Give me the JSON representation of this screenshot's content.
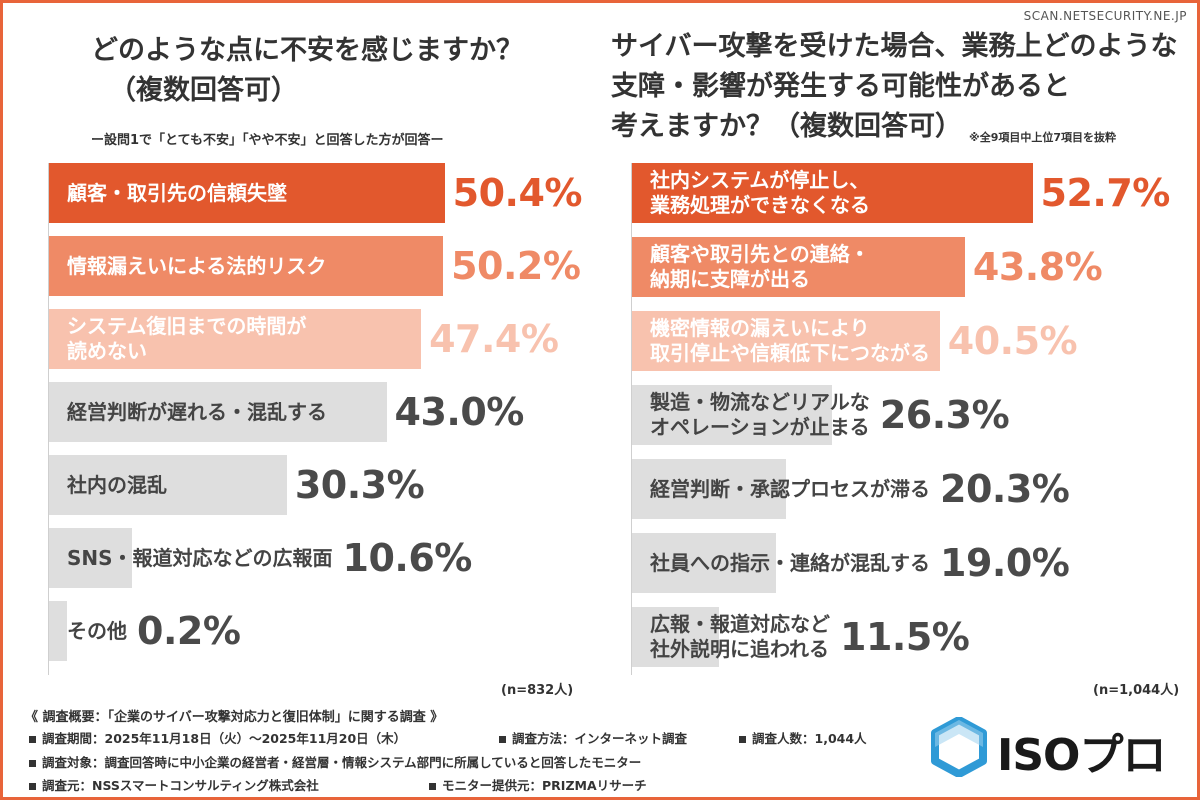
{
  "watermark": "SCAN.NETSECURITY.NE.JP",
  "left_chart": {
    "title_lines": [
      "どのような点に不安を感じますか？",
      "（複数回答可）"
    ],
    "subnote": "ー設問1で「とても不安」「やや不安」と回答した方が回答ー",
    "n_label": "(n=832人)"
  },
  "right_chart": {
    "title_lines": [
      "サイバー攻撃を受けた場合、業務上どのような",
      "支障・影響が発生する可能性があると",
      "考えますか？（複数回答可）"
    ],
    "subnote": "※全9項目中上位7項目を抜粋",
    "n_label": "(n=1,044人)"
  },
  "chart_data": [
    {
      "type": "bar",
      "orientation": "horizontal",
      "title": "どのような点に不安を感じますか？（複数回答可）",
      "unit": "%",
      "xlim": [
        0,
        100
      ],
      "categories": [
        "顧客・取引先の信頼失墜",
        "情報漏えいによる法的リスク",
        "システム復旧までの時間が\n読めない",
        "経営判断が遅れる・混乱する",
        "社内の混乱",
        "SNS・報道対応などの広報面",
        "その他"
      ],
      "values": [
        50.4,
        50.2,
        47.4,
        43.0,
        30.3,
        10.6,
        0.2
      ],
      "value_labels": [
        "50.4%",
        "50.2%",
        "47.4%",
        "43.0%",
        "30.3%",
        "10.6%",
        "0.2%"
      ],
      "bar_colors": [
        "#e2582d",
        "#ef8a66",
        "#f8c2ae",
        "#dedede",
        "#dedede",
        "#dedede",
        "#dedede"
      ],
      "label_colors": [
        "#ffffff",
        "#ffffff",
        "#ffffff",
        "#444444",
        "#444444",
        "#444444",
        "#444444"
      ],
      "value_colors": [
        "#e2582d",
        "#ef8a66",
        "#f8c2ae",
        "#4a4a4a",
        "#4a4a4a",
        "#4a4a4a",
        "#4a4a4a"
      ]
    },
    {
      "type": "bar",
      "orientation": "horizontal",
      "title": "サイバー攻撃を受けた場合、業務上どのような支障・影響が発生する可能性があると考えますか？（複数回答可）",
      "unit": "%",
      "xlim": [
        0,
        100
      ],
      "categories": [
        "社内システムが停止し、\n業務処理ができなくなる",
        "顧客や取引先との連絡・\n納期に支障が出る",
        "機密情報の漏えいにより\n取引停止や信頼低下につながる",
        "製造・物流などリアルな\nオペレーションが止まる",
        "経営判断・承認プロセスが滞る",
        "社員への指示・連絡が混乱する",
        "広報・報道対応など\n社外説明に追われる"
      ],
      "values": [
        52.7,
        43.8,
        40.5,
        26.3,
        20.3,
        19.0,
        11.5
      ],
      "value_labels": [
        "52.7%",
        "43.8%",
        "40.5%",
        "26.3%",
        "20.3%",
        "19.0%",
        "11.5%"
      ],
      "bar_colors": [
        "#e2582d",
        "#ef8a66",
        "#f8c2ae",
        "#dedede",
        "#dedede",
        "#dedede",
        "#dedede"
      ],
      "label_colors": [
        "#ffffff",
        "#ffffff",
        "#ffffff",
        "#444444",
        "#444444",
        "#444444",
        "#444444"
      ],
      "value_colors": [
        "#e2582d",
        "#ef8a66",
        "#f8c2ae",
        "#4a4a4a",
        "#4a4a4a",
        "#4a4a4a",
        "#4a4a4a"
      ]
    }
  ],
  "footer": {
    "title": "《 調査概要：「企業のサイバー攻撃対応力と復旧体制」に関する調査 》",
    "period": "調査期間：2025年11月18日（火）～2025年11月20日（木）",
    "method": "調査方法：インターネット調査",
    "count": "調査人数：1,044人",
    "target": "調査対象：調査回答時に中小企業の経営者・経営層・情報システム部門に所属していると回答したモニター",
    "source": "調査元：NSSスマートコンサルティング株式会社",
    "provider": "モニター提供元：PRIZMAリサーチ"
  },
  "logo": {
    "text": "ISOプロ",
    "color": "#2f9ad6"
  }
}
